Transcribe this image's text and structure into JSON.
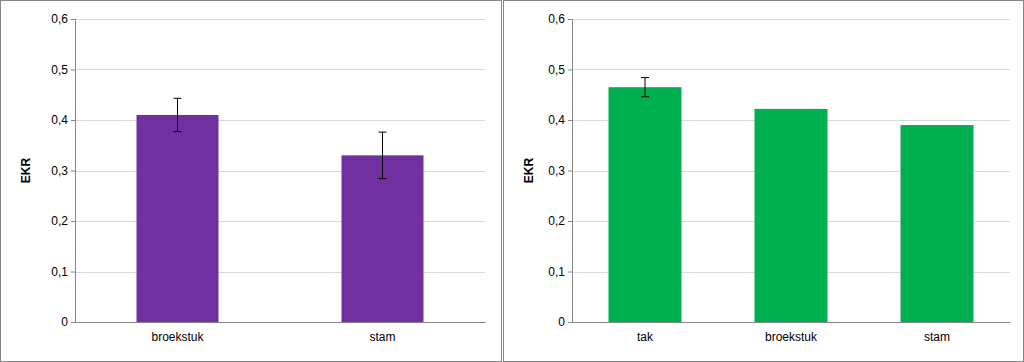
{
  "chart_data": [
    {
      "type": "bar",
      "ylabel": "EKR",
      "categories": [
        "broekstuk",
        "stam"
      ],
      "values": [
        0.41,
        0.33
      ],
      "errors": [
        0.033,
        0.046
      ],
      "color": "#7030a0",
      "ylim": [
        0,
        0.6
      ],
      "yticks": [
        0,
        {
          "value": 0.1,
          "label": "0,1"
        },
        {
          "value": 0.2,
          "label": "0,2"
        },
        {
          "value": 0.3,
          "label": "0,3"
        },
        {
          "value": 0.4,
          "label": "0,4"
        },
        {
          "value": 0.5,
          "label": "0,5"
        },
        {
          "value": 0.6,
          "label": "0,6"
        }
      ],
      "grid": true
    },
    {
      "type": "bar",
      "ylabel": "EKR",
      "categories": [
        "tak",
        "broekstuk",
        "stam"
      ],
      "values": [
        0.465,
        0.422,
        0.39
      ],
      "errors": [
        0.019,
        null,
        null
      ],
      "color": "#00b050",
      "ylim": [
        0,
        0.6
      ],
      "yticks": [
        0,
        {
          "value": 0.1,
          "label": "0,1"
        },
        {
          "value": 0.2,
          "label": "0,2"
        },
        {
          "value": 0.3,
          "label": "0,3"
        },
        {
          "value": 0.4,
          "label": "0,4"
        },
        {
          "value": 0.5,
          "label": "0,5"
        },
        {
          "value": 0.6,
          "label": "0,6"
        }
      ],
      "grid": true
    }
  ]
}
